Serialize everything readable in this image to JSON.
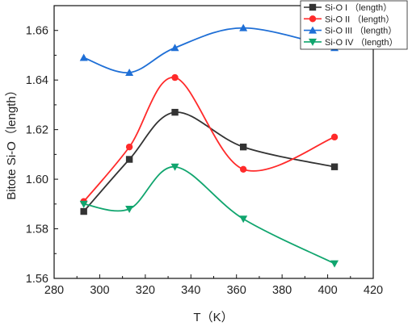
{
  "chart_data": {
    "type": "line",
    "title": "",
    "xlabel": "T（K）",
    "ylabel": "Bitote Si-O（length）",
    "xlim": [
      280,
      420
    ],
    "ylim": [
      1.56,
      1.67
    ],
    "x_ticks": [
      "280",
      "300",
      "320",
      "340",
      "360",
      "380",
      "400",
      "420"
    ],
    "y_ticks": [
      "1.56",
      "1.58",
      "1.60",
      "1.62",
      "1.64",
      "1.66"
    ],
    "grid": false,
    "legend_position": "top-right",
    "x": [
      293,
      313,
      333,
      363,
      403
    ],
    "series": [
      {
        "name": "Si-O I （length）",
        "color": "#333333",
        "marker": "square",
        "values": [
          1.587,
          1.608,
          1.627,
          1.613,
          1.605
        ]
      },
      {
        "name": "Si-O II （length）",
        "color": "#ff2a2a",
        "marker": "circle",
        "values": [
          1.591,
          1.613,
          1.641,
          1.604,
          1.617
        ]
      },
      {
        "name": "Si-O III （length）",
        "color": "#1f6fd6",
        "marker": "triangle-up",
        "values": [
          1.649,
          1.643,
          1.653,
          1.661,
          1.653
        ]
      },
      {
        "name": "Si-O IV （length）",
        "color": "#10a56e",
        "marker": "triangle-down",
        "values": [
          1.59,
          1.588,
          1.605,
          1.584,
          1.566
        ]
      }
    ]
  }
}
